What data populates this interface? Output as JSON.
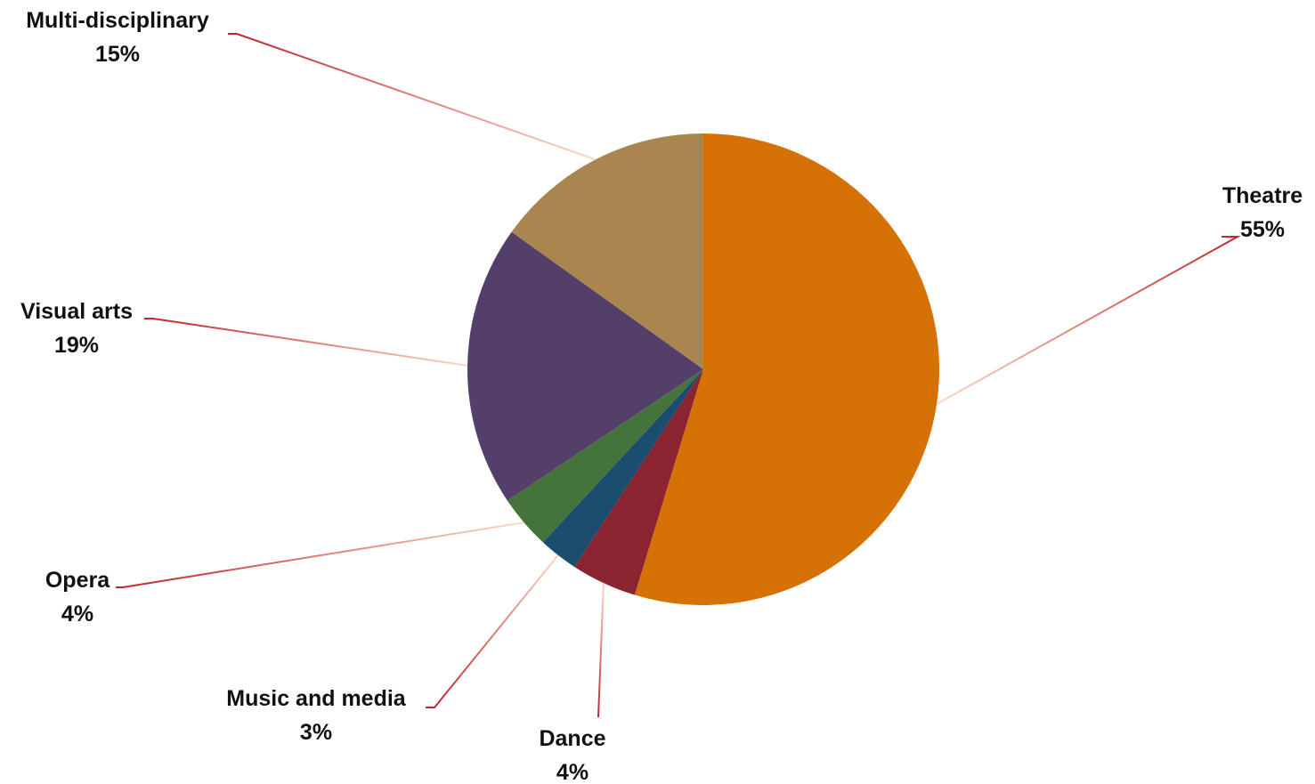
{
  "chart_data": {
    "type": "pie",
    "title": "",
    "start_angle_deg": 0,
    "direction": "clockwise",
    "slices": [
      {
        "label": "Theatre",
        "pct_label": "55%",
        "value": 54.7,
        "color": "#D57105"
      },
      {
        "label": "Dance",
        "pct_label": "4%",
        "value": 4.5,
        "color": "#8A2430"
      },
      {
        "label": "Music and media",
        "pct_label": "3%",
        "value": 2.7,
        "color": "#1A4D6E"
      },
      {
        "label": "Opera",
        "pct_label": "4%",
        "value": 3.7,
        "color": "#44743B"
      },
      {
        "label": "Visual arts",
        "pct_label": "19%",
        "value": 19.3,
        "color": "#533F69"
      },
      {
        "label": "Multi-disciplinary",
        "pct_label": "15%",
        "value": 15.1,
        "color": "#A98650"
      }
    ],
    "leader_colors": {
      "near_label": "#C0272D",
      "near_slice": "#FBD9C6"
    }
  }
}
